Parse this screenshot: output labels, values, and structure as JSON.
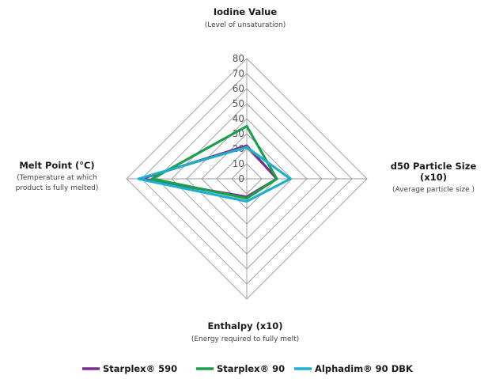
{
  "chart_data": {
    "type": "radar",
    "axes": [
      {
        "label": "Iodine Value",
        "sublabel": [
          "(Level of unsaturation)"
        ]
      },
      {
        "label": "d50 Particle Size",
        "label2": "(x10)",
        "sublabel": [
          "(Average particle size )"
        ]
      },
      {
        "label": "Enthalpy (x10)",
        "sublabel": [
          "(Energy required to fully melt)"
        ]
      },
      {
        "label": "Melt Point (°C)",
        "sublabel": [
          "(Temperature at which",
          "product is fully melted)"
        ]
      }
    ],
    "ticks": [
      "0",
      "10",
      "20",
      "30",
      "40",
      "50",
      "60",
      "70",
      "80"
    ],
    "range": [
      0,
      80
    ],
    "series": [
      {
        "name": "Starplex® 590",
        "color": "#7b2d8e",
        "values": [
          22,
          20,
          12,
          70
        ]
      },
      {
        "name": "Starplex® 90",
        "color": "#1aa04a",
        "values": [
          35,
          20,
          13,
          63
        ]
      },
      {
        "name": "Alphadim® 90 DBK",
        "color": "#1cb0cc",
        "values": [
          21,
          29,
          15,
          72
        ]
      }
    ],
    "legend_position": "bottom"
  }
}
